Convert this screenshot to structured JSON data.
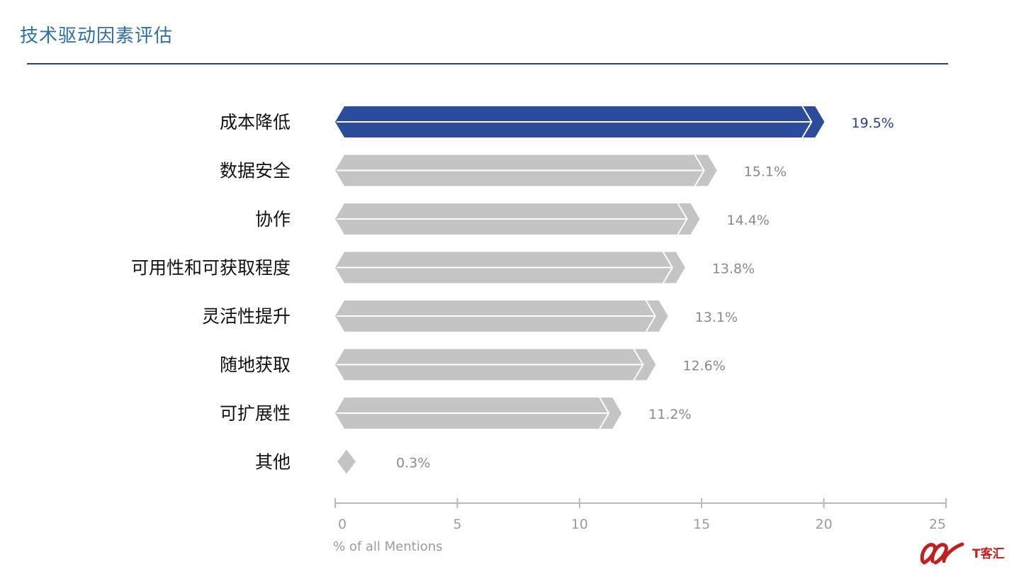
{
  "page_title": "技术驱动因素评估",
  "chart_data": {
    "type": "bar",
    "orientation": "horizontal",
    "categories": [
      "成本降低",
      "数据安全",
      "协作",
      "可用性和可获取程度",
      "灵活性提升",
      "随地获取",
      "可扩展性",
      "其他"
    ],
    "values": [
      19.5,
      15.1,
      14.4,
      13.8,
      13.1,
      12.6,
      11.2,
      0.3
    ],
    "value_labels": [
      "19.5%",
      "15.1%",
      "14.4%",
      "13.8%",
      "13.1%",
      "12.6%",
      "11.2%",
      "0.3%"
    ],
    "highlight_index": 0,
    "xlim": [
      0,
      25
    ],
    "xticks": [
      "0",
      "5",
      "10",
      "15",
      "20",
      "25"
    ],
    "xlabel": "% of all Mentions",
    "colors": {
      "highlight": "#2b4b9b",
      "bar": "#c4c4c4",
      "bar_edge": "#ffffff",
      "axis": "#b9b9b9"
    }
  },
  "watermark": {
    "logo_text": "T客汇",
    "color": "#c0201f"
  }
}
